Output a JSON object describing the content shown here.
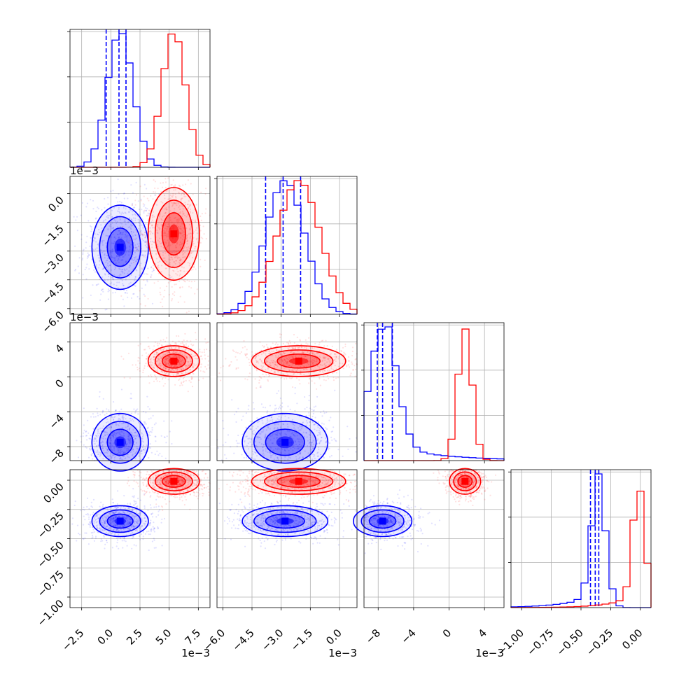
{
  "chart_data": {
    "type": "corner",
    "series": [
      {
        "name": "",
        "color": "#0000ff",
        "mean": [
          0.0008,
          -0.0028,
          -0.0075,
          -0.35
        ],
        "sd": [
          0.0011,
          0.001,
          0.0015,
          0.06
        ],
        "hist_percentiles": {
          "0": [
            -0.0004,
            0.0007,
            0.0013
          ],
          "1": [
            -0.0038,
            -0.0029,
            -0.002
          ],
          "2": [
            -0.0081,
            -0.0075,
            -0.0064
          ],
          "3": [
            -0.42,
            -0.38,
            -0.35
          ]
        },
        "hist_tail_note": "",
        "hist_tail": {
          "2": true,
          "3": true
        }
      },
      {
        "name": "",
        "color": "#ff0000",
        "mean": [
          0.0054,
          -0.0021,
          0.0018,
          -0.01
        ],
        "sd": [
          0.001,
          0.0011,
          0.0008,
          0.05
        ],
        "hist_percentiles": {},
        "hist_tail": {
          "3": true
        }
      }
    ],
    "params": [
      {
        "range": [
          -0.0035,
          0.0085
        ],
        "ticks": [
          "−2.5",
          "0.0",
          "2.5",
          "5.0",
          "7.5"
        ],
        "tick_values": [
          -0.0025,
          0.0,
          0.0025,
          0.005,
          0.0075
        ],
        "offset": "1e−3"
      },
      {
        "range": [
          -0.0063,
          0.0009
        ],
        "ticks": [
          "−6.0",
          "−4.5",
          "−3.0",
          "−1.5",
          "0.0"
        ],
        "tick_values": [
          -0.006,
          -0.0045,
          -0.003,
          -0.0015,
          0.0
        ],
        "offset": "1e−3"
      },
      {
        "range": [
          -0.0096,
          0.0062
        ],
        "ticks": [
          "−8",
          "−4",
          "0",
          "4"
        ],
        "tick_values": [
          -0.008,
          -0.004,
          0.0,
          0.004
        ],
        "offset": "1e−3"
      },
      {
        "range": [
          -1.09,
          0.09
        ],
        "ticks": [
          "−1.00",
          "−0.75",
          "−0.50",
          "−0.25",
          "0.00"
        ],
        "tick_values": [
          -1.0,
          -0.75,
          -0.5,
          -0.25,
          0.0
        ],
        "offset": ""
      }
    ],
    "grid": true
  }
}
